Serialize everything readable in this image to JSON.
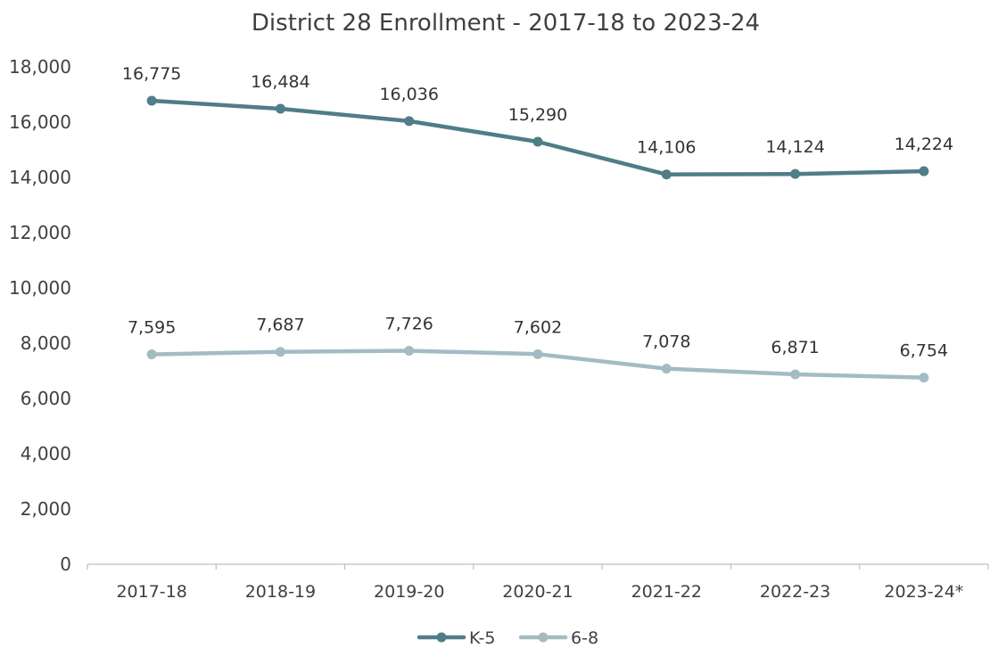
{
  "chart_data": {
    "type": "line",
    "title": "District 28 Enrollment - 2017-18 to 2023-24",
    "xlabel": "",
    "ylabel": "",
    "categories": [
      "2017-18",
      "2018-19",
      "2019-20",
      "2020-21",
      "2021-22",
      "2022-23",
      "2023-24*"
    ],
    "ylim": [
      0,
      18000
    ],
    "yticks": [
      "0",
      "2,000",
      "4,000",
      "6,000",
      "8,000",
      "10,000",
      "12,000",
      "14,000",
      "16,000",
      "18,000"
    ],
    "ytick_values": [
      0,
      2000,
      4000,
      6000,
      8000,
      10000,
      12000,
      14000,
      16000,
      18000
    ],
    "grid": false,
    "legend_position": "bottom",
    "series": [
      {
        "name": "K-5",
        "color": "#4f7d88",
        "values": [
          16775,
          16484,
          16036,
          15290,
          14106,
          14124,
          14224
        ],
        "labels": [
          "16,775",
          "16,484",
          "16,036",
          "15,290",
          "14,106",
          "14,124",
          "14,224"
        ]
      },
      {
        "name": "6-8",
        "color": "#a3bcc3",
        "values": [
          7595,
          7687,
          7726,
          7602,
          7078,
          6871,
          6754
        ],
        "labels": [
          "7,595",
          "7,687",
          "7,726",
          "7,602",
          "7,078",
          "6,871",
          "6,754"
        ]
      }
    ]
  }
}
